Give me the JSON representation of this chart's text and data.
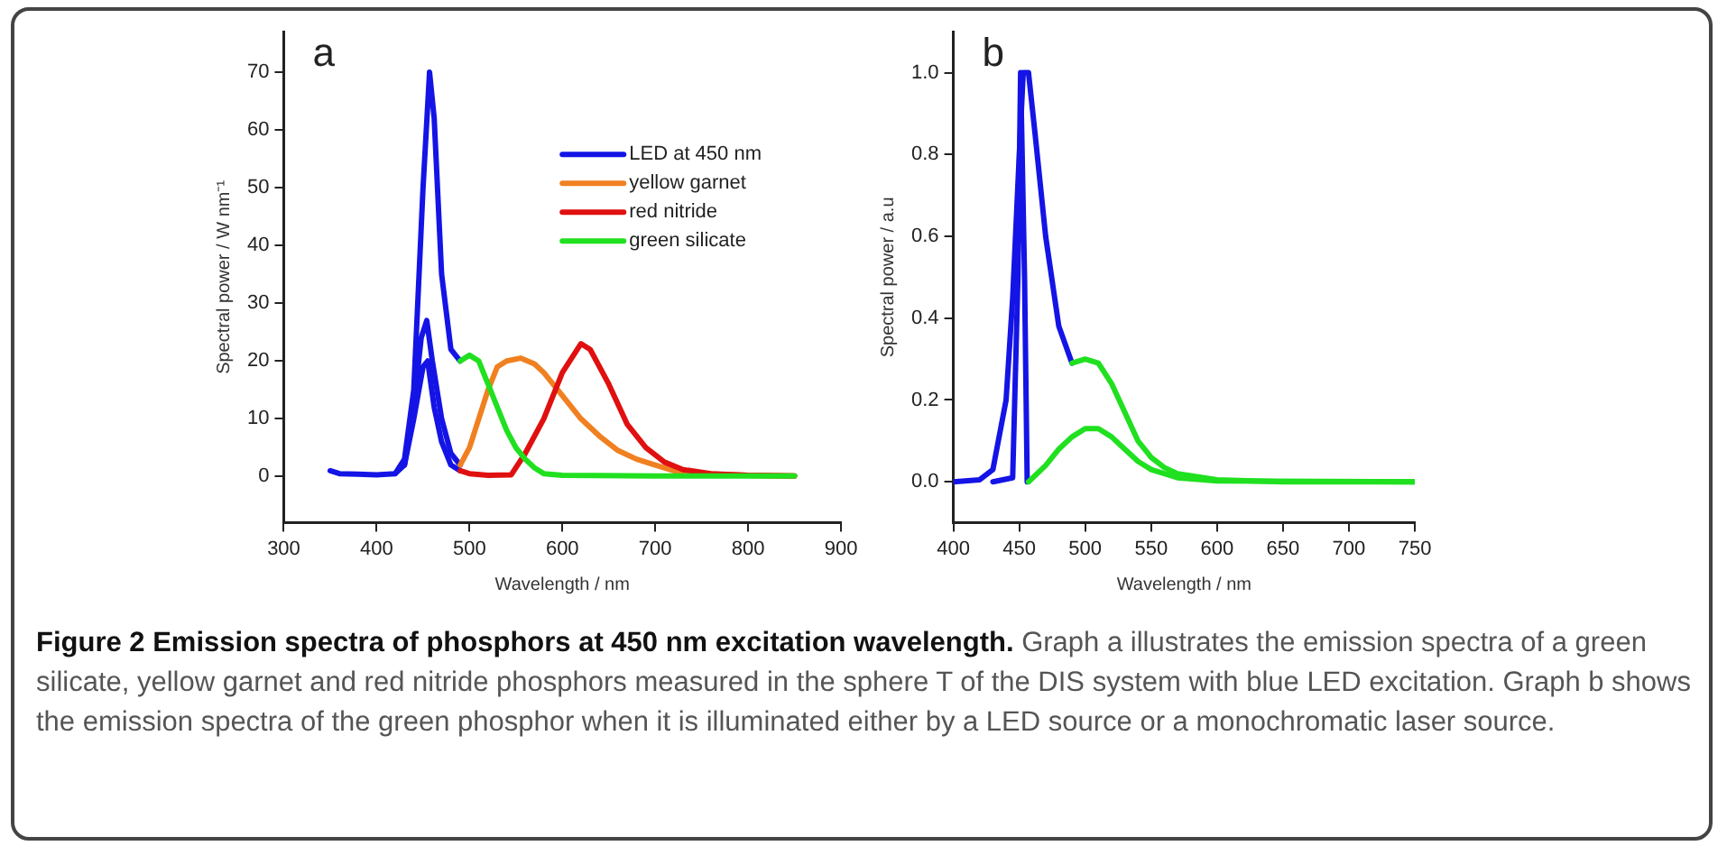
{
  "chart_data": [
    {
      "type": "line",
      "title": "a",
      "xlabel": "Wavelength / nm",
      "ylabel": "Spectral power / W nm⁻¹",
      "xlim": [
        300,
        900
      ],
      "xticks": [
        300,
        400,
        500,
        600,
        700,
        800,
        900
      ],
      "ylim": [
        -8,
        77
      ],
      "yticks": [
        0,
        10,
        20,
        30,
        40,
        50,
        60,
        70
      ],
      "legend": "top right",
      "grid": false,
      "marker": "none",
      "line_style": "solid",
      "series": [
        {
          "name": "LED at 450 nm",
          "color": "#1414e6",
          "x": [
            350,
            360,
            380,
            400,
            420,
            430,
            440,
            450,
            457,
            462,
            470,
            480,
            490
          ],
          "values": [
            1,
            0.5,
            0.4,
            0.3,
            0.5,
            3,
            15,
            50,
            70,
            62,
            35,
            22,
            20
          ]
        },
        {
          "color": "#1414e6",
          "x": [
            420,
            430,
            440,
            448,
            454,
            460,
            470,
            480,
            490
          ],
          "values": [
            0.5,
            2,
            12,
            24,
            27,
            20,
            10,
            4,
            2
          ]
        },
        {
          "color": "#1414e6",
          "x": [
            430,
            440,
            450,
            455,
            462,
            470,
            480,
            490
          ],
          "values": [
            2,
            10,
            19,
            20,
            12,
            6,
            2,
            1
          ]
        },
        {
          "name": "yellow garnet",
          "color": "#f08020",
          "x": [
            490,
            500,
            510,
            520,
            530,
            540,
            555,
            570,
            580,
            600,
            620,
            640,
            660,
            680,
            700,
            720,
            750,
            800,
            850
          ],
          "values": [
            2,
            5,
            10,
            15,
            19,
            20,
            20.5,
            19.5,
            18,
            14,
            10,
            7,
            4.5,
            3,
            2,
            1,
            0.5,
            0.2,
            0.1
          ]
        },
        {
          "name": "red nitride",
          "color": "#e01010",
          "x": [
            490,
            500,
            520,
            545,
            560,
            580,
            600,
            620,
            630,
            650,
            670,
            690,
            710,
            730,
            760,
            800,
            850
          ],
          "values": [
            1,
            0.5,
            0.2,
            0.3,
            4,
            10,
            18,
            23,
            22,
            16,
            9,
            5,
            2.5,
            1.2,
            0.5,
            0.2,
            0.1
          ]
        },
        {
          "name": "green silicate",
          "color": "#20e020",
          "x": [
            490,
            500,
            510,
            520,
            530,
            540,
            550,
            560,
            570,
            580,
            600,
            700,
            850
          ],
          "values": [
            20,
            21,
            20,
            16,
            12,
            8,
            5,
            3,
            1.5,
            0.5,
            0.2,
            0.1,
            0.1
          ]
        }
      ],
      "annotations": [
        "Figure 2 Emission spectra of phosphors at 450 nm excitation wavelength.",
        "Graph a illustrates the emission spectra of a green silicate, yellow garnet and red nitride phosphors measured in the sphere T of the DIS system with blue LED excitation. Graph b shows the emission spectra of the green phosphor when it is illuminated either by a LED source or a monochromatic laser source."
      ]
    },
    {
      "type": "line",
      "title": "b",
      "xlabel": "Wavelength / nm",
      "ylabel": "Spectral power / a.u",
      "xlim": [
        400,
        750
      ],
      "xticks": [
        400,
        450,
        500,
        550,
        600,
        650,
        700,
        750
      ],
      "ylim": [
        -0.1,
        1.1
      ],
      "yticks": [
        {
          "value": 0,
          "label": "0.0"
        },
        {
          "value": 0.2,
          "label": "0.2"
        },
        {
          "value": 0.4,
          "label": "0.4"
        },
        {
          "value": 0.6,
          "label": "0.6"
        },
        {
          "value": 0.8,
          "label": "0.8"
        },
        {
          "value": 1,
          "label": "1.0"
        }
      ],
      "grid": false,
      "marker": "none",
      "line_style": "solid",
      "series": [
        {
          "color": "#1414e6",
          "x": [
            400,
            420,
            430,
            440,
            445,
            450,
            453,
            457,
            462,
            470,
            480,
            490
          ],
          "values": [
            0,
            0.005,
            0.03,
            0.2,
            0.45,
            0.8,
            1,
            1,
            0.85,
            0.6,
            0.38,
            0.29
          ]
        },
        {
          "color": "#20e020",
          "x": [
            490,
            500,
            510,
            520,
            530,
            540,
            550,
            560,
            570,
            600,
            650,
            750
          ],
          "values": [
            0.29,
            0.3,
            0.29,
            0.24,
            0.17,
            0.1,
            0.06,
            0.035,
            0.02,
            0.005,
            0,
            0
          ]
        },
        {
          "color": "#1414e6",
          "x": [
            430,
            445,
            449,
            451,
            454,
            456
          ],
          "values": [
            0,
            0.01,
            0.5,
            1,
            0.5,
            0
          ]
        },
        {
          "color": "#20e020",
          "x": [
            457,
            470,
            480,
            490,
            500,
            510,
            520,
            530,
            540,
            550,
            570,
            600,
            750
          ],
          "values": [
            0,
            0.04,
            0.08,
            0.11,
            0.13,
            0.13,
            0.11,
            0.08,
            0.05,
            0.03,
            0.01,
            0.002,
            0
          ]
        }
      ]
    }
  ]
}
